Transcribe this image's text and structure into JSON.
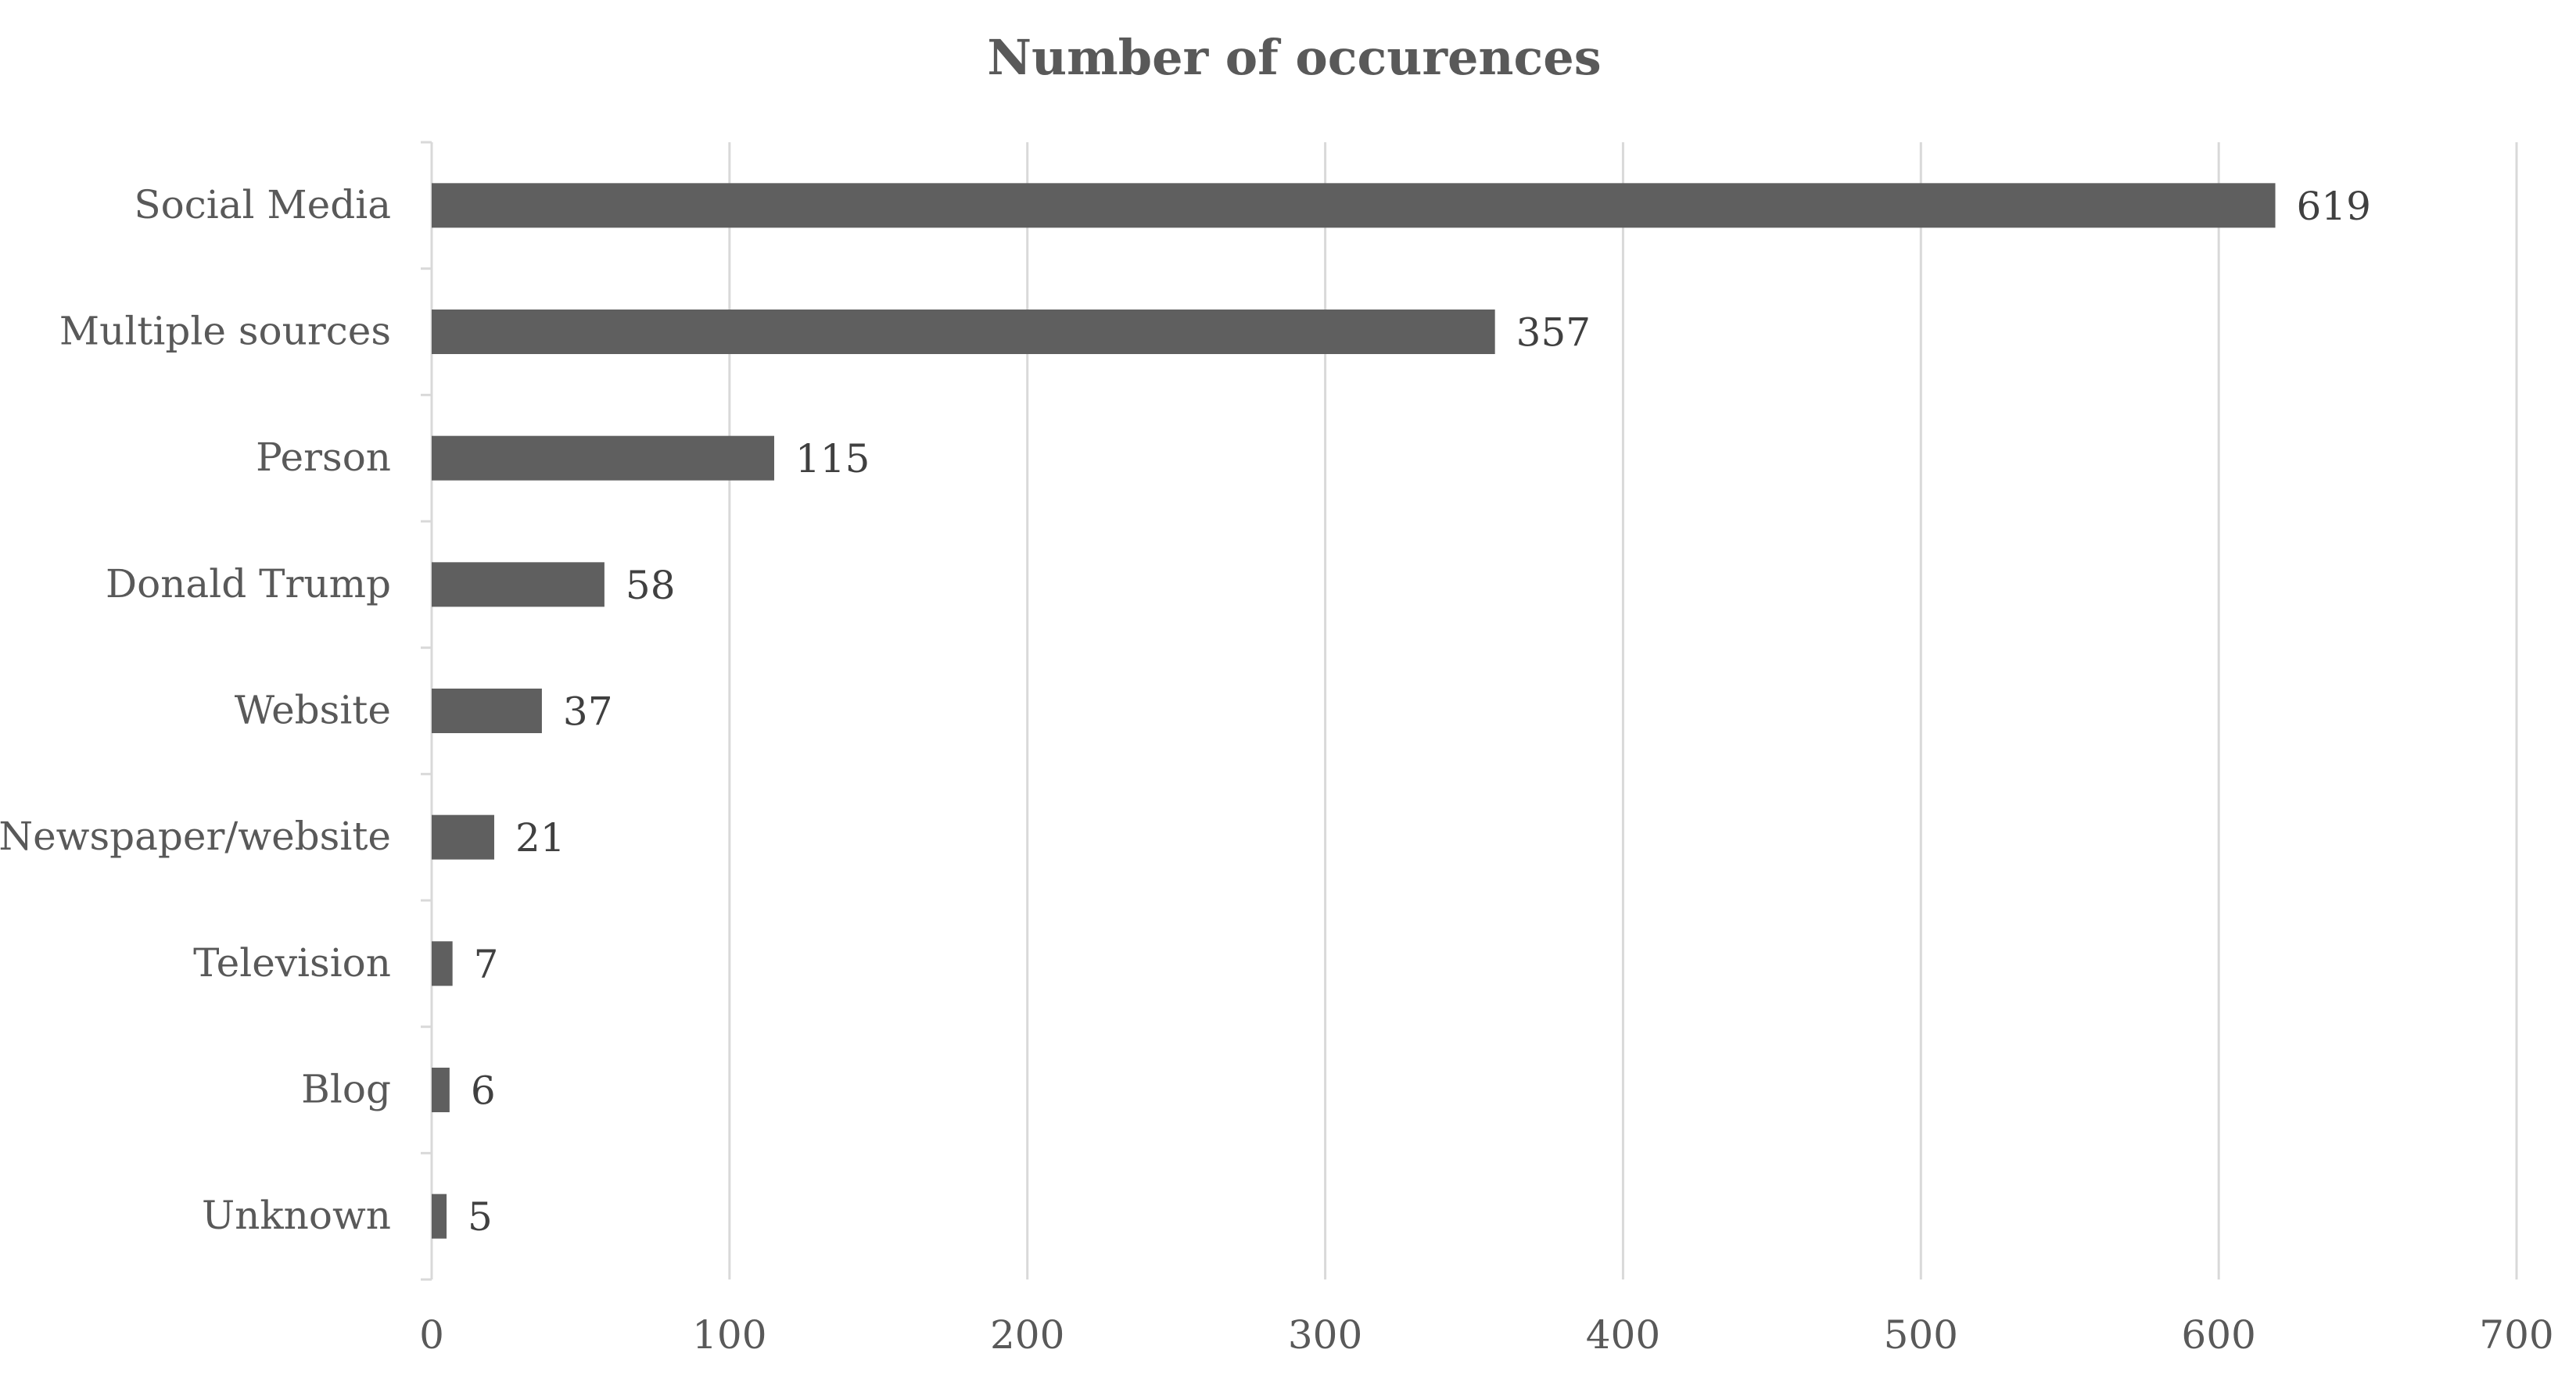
{
  "chart_data": {
    "type": "bar",
    "orientation": "horizontal",
    "title": "Number of occurences",
    "xlabel": "",
    "ylabel": "",
    "categories": [
      "Social Media",
      "Multiple sources",
      "Person",
      "Donald Trump",
      "Website",
      "Newspaper/website",
      "Television",
      "Blog",
      "Unknown"
    ],
    "values": [
      619,
      357,
      115,
      58,
      37,
      21,
      7,
      6,
      5
    ],
    "xlim": [
      0,
      700
    ],
    "xticks": [
      0,
      100,
      200,
      300,
      400,
      500,
      600,
      700
    ],
    "grid": "vertical",
    "legend": "none",
    "data_labels": true,
    "bar_color": "#5f5f5f",
    "text_color": "#595959",
    "grid_color": "#d9d9d9"
  }
}
